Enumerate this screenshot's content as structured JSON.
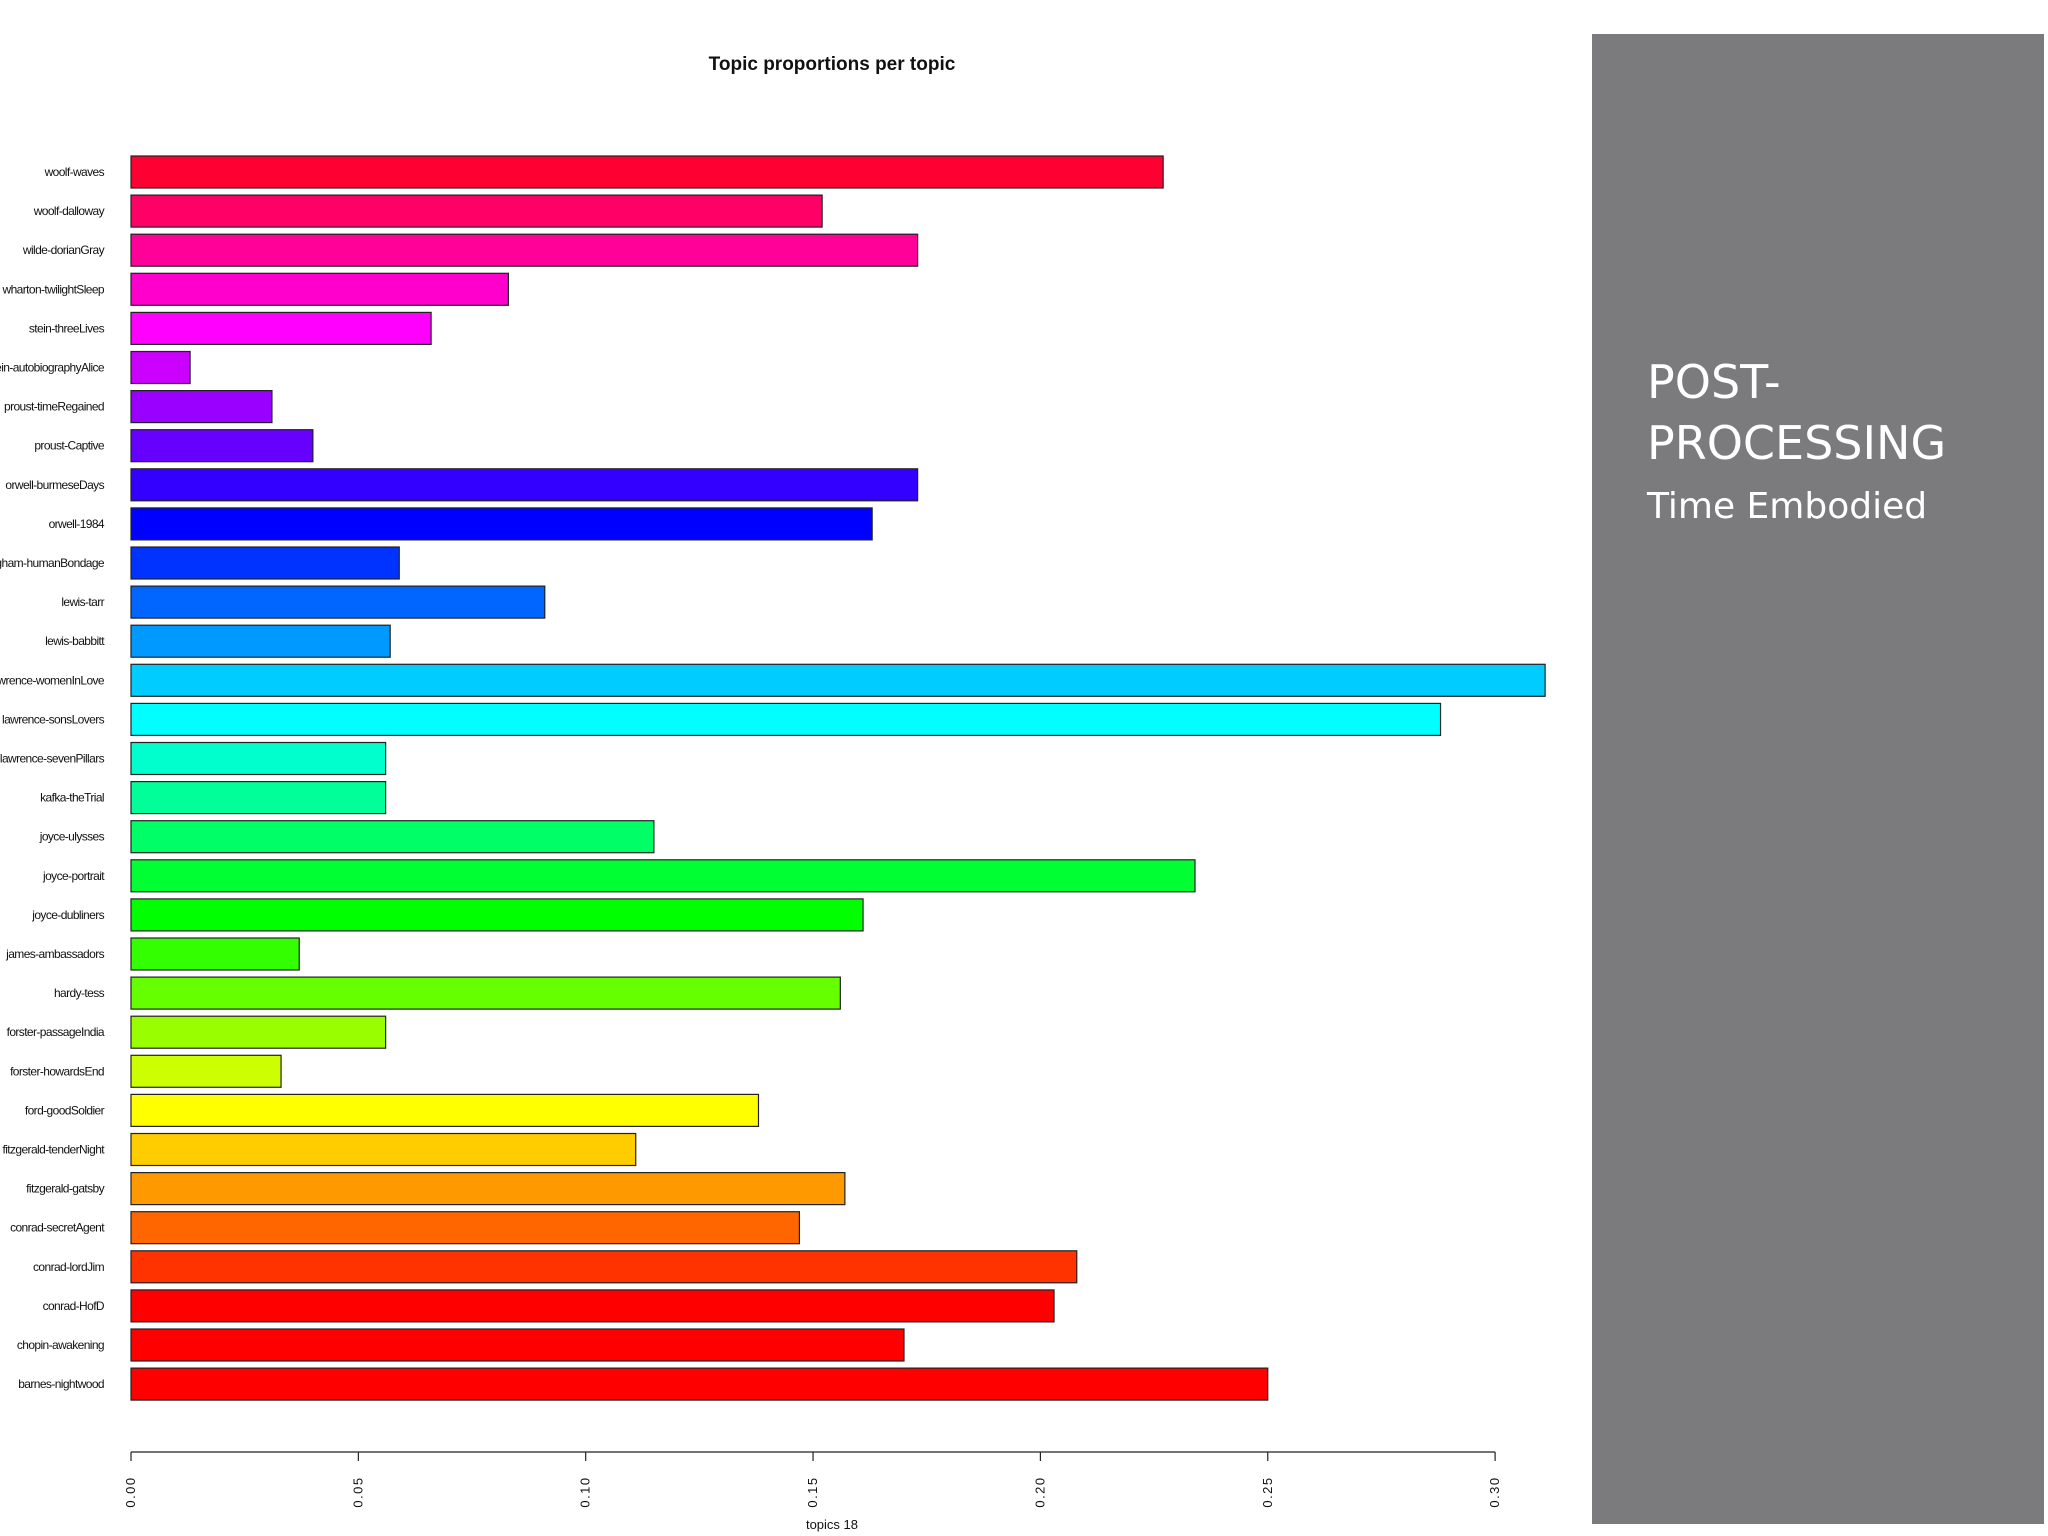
{
  "slide": {
    "title": "POST-PROCESSING",
    "subtitle": "Time Embodied",
    "panel_color": "#7b7b7d"
  },
  "chart_data": {
    "type": "bar",
    "orientation": "horizontal",
    "title": "Topic proportions per topic",
    "xlabel": "topics 18",
    "ylabel": "",
    "xlim": [
      0,
      0.31
    ],
    "xticks": [
      0.0,
      0.05,
      0.1,
      0.15,
      0.2,
      0.25,
      0.3
    ],
    "xtick_labels": [
      "0.00",
      "0.05",
      "0.10",
      "0.15",
      "0.20",
      "0.25",
      "0.30"
    ],
    "grid": false,
    "legend": "none",
    "color_scheme": "rainbow",
    "categories": [
      "woolf-waves",
      "woolf-dalloway",
      "wilde-dorianGray",
      "wharton-twilightSleep",
      "stein-threeLives",
      "stein-autobiographyAlice",
      "proust-timeRegained",
      "proust-Captive",
      "orwell-burmeseDays",
      "orwell-1984",
      "maugham-humanBondage",
      "lewis-tarr",
      "lewis-babbitt",
      "lawrence-womenInLove",
      "lawrence-sonsLovers",
      "lawrence-sevenPillars",
      "kafka-theTrial",
      "joyce-ulysses",
      "joyce-portrait",
      "joyce-dubliners",
      "james-ambassadors",
      "hardy-tess",
      "forster-passageIndia",
      "forster-howardsEnd",
      "ford-goodSoldier",
      "fitzgerald-tenderNight",
      "fitzgerald-gatsby",
      "conrad-secretAgent",
      "conrad-lordJim",
      "conrad-HofD",
      "chopin-awakening",
      "barnes-nightwood"
    ],
    "values": [
      0.227,
      0.152,
      0.173,
      0.083,
      0.066,
      0.013,
      0.031,
      0.04,
      0.173,
      0.163,
      0.059,
      0.091,
      0.057,
      0.311,
      0.288,
      0.056,
      0.056,
      0.115,
      0.234,
      0.161,
      0.037,
      0.156,
      0.056,
      0.033,
      0.138,
      0.111,
      0.157,
      0.147,
      0.208,
      0.203,
      0.17,
      0.25
    ],
    "colors": [
      "#ff0033",
      "#ff0066",
      "#ff0099",
      "#ff00cc",
      "#ff00ff",
      "#cc00ff",
      "#9900ff",
      "#6600ff",
      "#3300ff",
      "#0000ff",
      "#0033ff",
      "#0066ff",
      "#0099ff",
      "#00ccff",
      "#00ffff",
      "#00ffcc",
      "#00ff99",
      "#00ff66",
      "#00ff33",
      "#00ff00",
      "#33ff00",
      "#66ff00",
      "#99ff00",
      "#ccff00",
      "#ffff00",
      "#ffcc00",
      "#ff9900",
      "#ff6600",
      "#ff3300",
      "#ff0000",
      "#ff0000",
      "#ff0000"
    ]
  }
}
